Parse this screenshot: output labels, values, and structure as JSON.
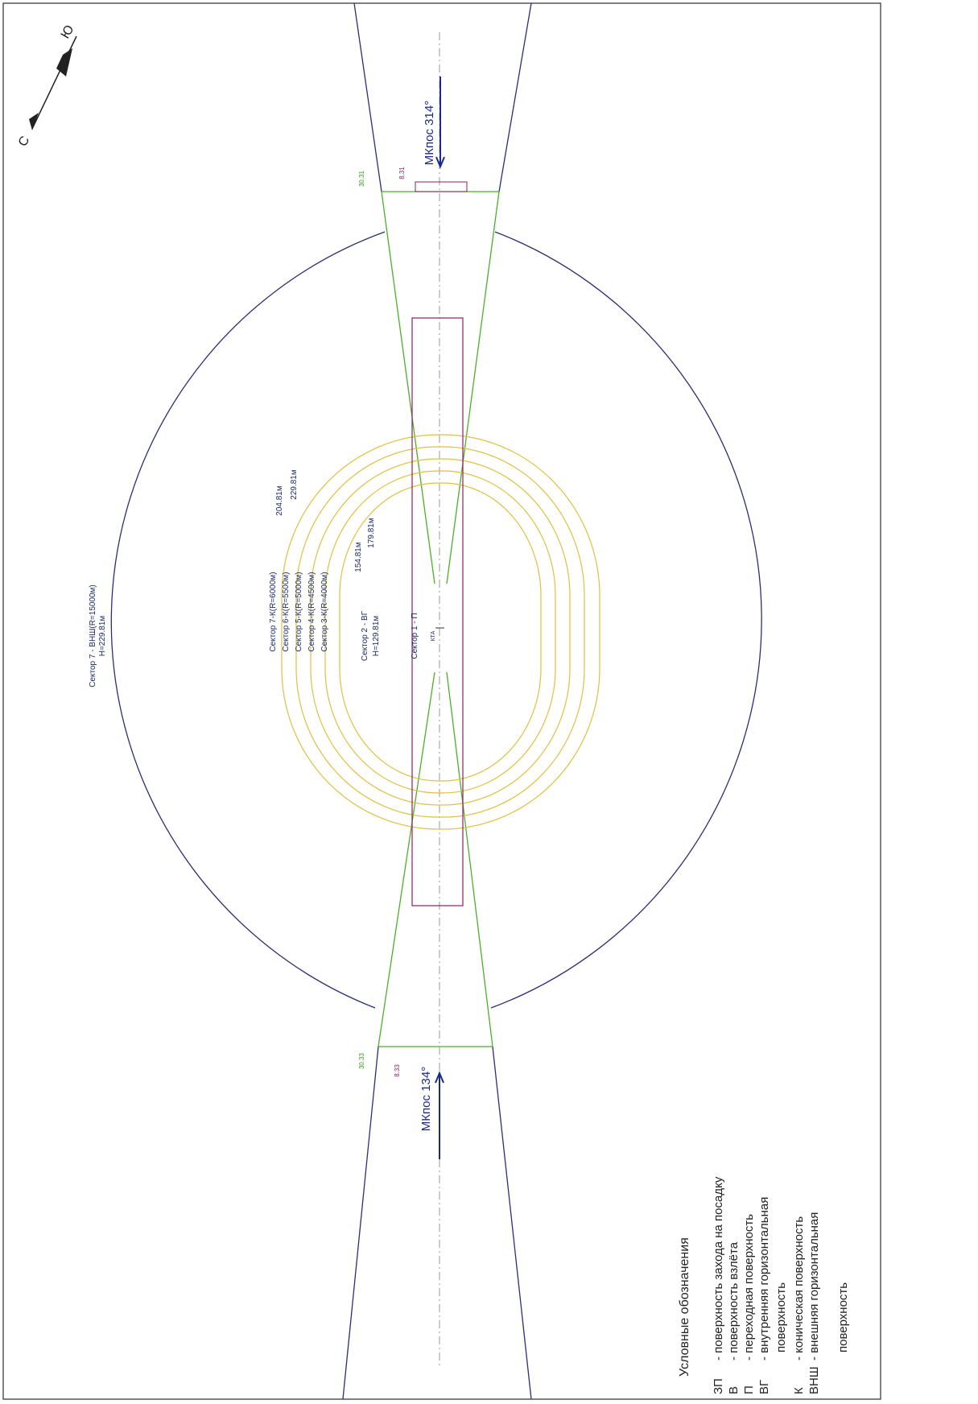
{
  "compass": {
    "north": "С",
    "south": "Ю"
  },
  "sectors": {
    "s7_vnsh": "Сектор 7 - ВНШ(R=15000м)",
    "s7_height": "H=229.81м",
    "s7_k": "Сектор 7-К(R=6000м)",
    "s6_k": "Сектор 6-К(R=5500м)",
    "s5_k": "Сектор 5-К(R=5000м)",
    "s4_k": "Сектор 4-К(R=4500м)",
    "s3_k": "Сектор 3-К(R=4000м)",
    "s2_vg": "Сектор 2 - ВГ",
    "s2_height": "H=129.81м",
    "s1_p": "Сектор 1 - П",
    "kta": "КТА"
  },
  "heights": {
    "h1": "204.81м",
    "h2": "229.81м",
    "h3": "154.81м",
    "h4": "179.81м"
  },
  "approach": {
    "top_course": "МКпос 314°",
    "bottom_course": "МКпос 134°",
    "top_threshold": "30.31",
    "bottom_threshold": "30.33",
    "top_mark": "8.31",
    "bottom_mark": "8.33"
  },
  "legend": {
    "title": "Условные обозначения",
    "items": [
      {
        "code": "ЗП",
        "text": "- поверхность захода на посадку"
      },
      {
        "code": "В",
        "text": "- поверхность взлёта"
      },
      {
        "code": "П",
        "text": "- переходная поверхность"
      },
      {
        "code": "ВГ",
        "text": "- внутренняя горизонтальная",
        "cont": "поверхность"
      },
      {
        "code": "К",
        "text": "- коническая поверхность"
      },
      {
        "code": "ВНШ",
        "text": "- внешняя горизонтальная",
        "cont": "поверхность"
      }
    ]
  }
}
